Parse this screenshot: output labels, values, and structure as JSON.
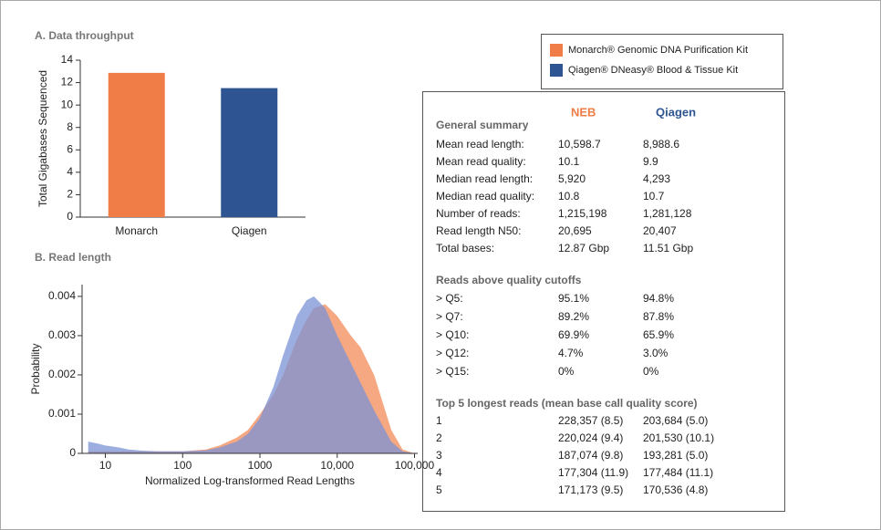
{
  "chart_data": [
    {
      "type": "bar",
      "title": "A. Data throughput",
      "y_label": "Total Gigabases Sequenced",
      "categories": [
        "Monarch",
        "Qiagen"
      ],
      "values": [
        12.87,
        11.51
      ],
      "colors": [
        "#f07c47",
        "#2e5591"
      ],
      "ylim": [
        0,
        14
      ],
      "yticks": [
        0,
        2,
        4,
        6,
        8,
        10,
        12,
        14
      ]
    },
    {
      "type": "area",
      "title": "B. Read length",
      "x_label": "Normalized Log-transformed Read Lengths",
      "y_label": "Probability",
      "x_log": true,
      "x": [
        6,
        8,
        10,
        15,
        20,
        30,
        50,
        100,
        200,
        300,
        500,
        700,
        1000,
        1500,
        2000,
        3000,
        4000,
        5000,
        7000,
        10000,
        15000,
        20000,
        30000,
        50000,
        70000,
        100000
      ],
      "series": [
        {
          "name": "NEB",
          "color": "#f4996d",
          "values": [
            5e-05,
            5e-05,
            5e-05,
            5e-05,
            5e-05,
            5e-05,
            5e-05,
            5e-05,
            0.0001,
            0.0002,
            0.0004,
            0.0006,
            0.001,
            0.0015,
            0.002,
            0.0029,
            0.0034,
            0.0037,
            0.0038,
            0.0035,
            0.003,
            0.0027,
            0.002,
            0.0006,
            0.0001,
            0
          ]
        },
        {
          "name": "Qiagen",
          "color": "#7b93d6",
          "values": [
            0.0003,
            0.00025,
            0.0002,
            0.00015,
            0.0001,
            7e-05,
            5e-05,
            5e-05,
            8e-05,
            0.00015,
            0.0003,
            0.0005,
            0.0009,
            0.0017,
            0.0025,
            0.0035,
            0.0039,
            0.004,
            0.0037,
            0.003,
            0.0023,
            0.0018,
            0.0011,
            0.0003,
            5e-05,
            0
          ]
        }
      ],
      "xlim": [
        5,
        110000
      ],
      "xticks": [
        10,
        100,
        1000,
        {
          "value": 10000,
          "label": "10,000"
        },
        {
          "value": 100000,
          "label": "100,000"
        }
      ],
      "ylim": [
        0,
        0.0043
      ],
      "yticks": [
        0,
        0.001,
        0.002,
        0.003,
        0.004
      ]
    }
  ],
  "legend": [
    {
      "name": "Monarch® Genomic DNA Purification Kit",
      "color": "#f07c47"
    },
    {
      "name": "Qiagen® DNeasy® Blood & Tissue Kit",
      "color": "#2e5591"
    }
  ],
  "table": {
    "columns": [
      {
        "name": "NEB",
        "color": "#f07c47"
      },
      {
        "name": "Qiagen",
        "color": "#2e5591"
      }
    ],
    "sections": [
      {
        "title": "General summary",
        "rows": [
          [
            "Mean read length:",
            "10,598.7",
            "8,988.6"
          ],
          [
            "Mean read quality:",
            "10.1",
            "9.9"
          ],
          [
            "Median read length:",
            "5,920",
            "4,293"
          ],
          [
            "Median read quality:",
            "10.8",
            "10.7"
          ],
          [
            "Number of reads:",
            "1,215,198",
            "1,281,128"
          ],
          [
            "Read length N50:",
            "20,695",
            "20,407"
          ],
          [
            "Total bases:",
            "12.87 Gbp",
            "11.51 Gbp"
          ]
        ]
      },
      {
        "title": "Reads above quality cutoffs",
        "rows": [
          [
            "> Q5:",
            "95.1%",
            "94.8%"
          ],
          [
            "> Q7:",
            "89.2%",
            "87.8%"
          ],
          [
            "> Q10:",
            "69.9%",
            "65.9%"
          ],
          [
            "> Q12:",
            "4.7%",
            "3.0%"
          ],
          [
            "> Q15:",
            "0%",
            "0%"
          ]
        ]
      },
      {
        "title": "Top 5 longest reads (mean base call quality score)",
        "rows": [
          [
            "1",
            "228,357 (8.5)",
            "203,684 (5.0)"
          ],
          [
            "2",
            "220,024 (9.4)",
            "201,530 (10.1)"
          ],
          [
            "3",
            "187,074 (9.8)",
            "193,281 (5.0)"
          ],
          [
            "4",
            "177,304 (11.9)",
            "177,484 (11.1)"
          ],
          [
            "5",
            "171,173 (9.5)",
            "170,536 (4.8)"
          ]
        ]
      }
    ]
  }
}
